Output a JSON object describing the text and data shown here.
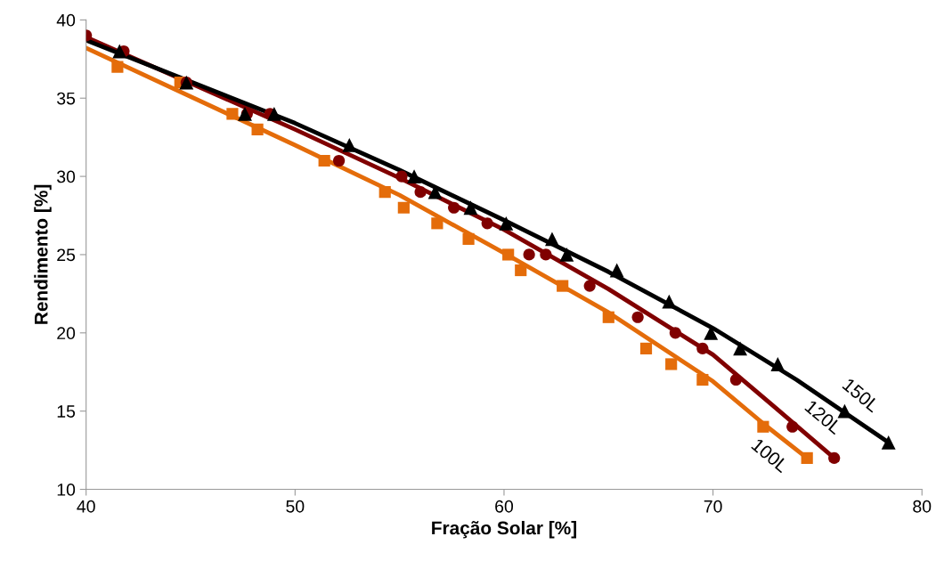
{
  "chart_data": {
    "type": "scatter",
    "xlabel": "Fração Solar [%]",
    "ylabel": "Rendimento [%]",
    "xlim": [
      40,
      80
    ],
    "xticks": [
      40,
      50,
      60,
      70,
      80
    ],
    "ylim": [
      10,
      40
    ],
    "yticks": [
      10,
      15,
      20,
      25,
      30,
      35,
      40
    ],
    "grid": false,
    "legend": false,
    "series": [
      {
        "type": "line",
        "name": "100L",
        "color": "#e46c0a",
        "x": [
          40,
          50,
          55,
          60,
          65,
          70,
          72.5,
          74.5
        ],
        "values": [
          38.2,
          32.0,
          28.8,
          25.1,
          21.3,
          16.9,
          14.1,
          12.0
        ]
      },
      {
        "type": "line",
        "name": "120L",
        "color": "#800000",
        "x": [
          40,
          50,
          55,
          60,
          65,
          70,
          73,
          75.8
        ],
        "values": [
          38.9,
          33.0,
          29.9,
          26.6,
          22.8,
          18.6,
          15.2,
          12.0
        ]
      },
      {
        "type": "line",
        "name": "150L",
        "color": "#000000",
        "x": [
          40,
          50,
          55,
          60,
          65,
          70,
          74,
          78.4
        ],
        "values": [
          38.7,
          33.4,
          30.4,
          27.2,
          23.9,
          20.3,
          17.0,
          13.0
        ]
      },
      {
        "marker": "square",
        "color": "#e46c0a",
        "x": [
          41.5,
          44.5,
          47.0,
          48.2,
          51.4,
          54.3,
          55.2,
          56.8,
          58.3,
          60.2,
          60.8,
          62.8,
          65.0,
          66.8,
          68.0,
          69.5,
          72.4,
          74.5
        ],
        "values": [
          37,
          36,
          34,
          33,
          31,
          29,
          28,
          27,
          26,
          25,
          24,
          23,
          21,
          19,
          18,
          17,
          14,
          12
        ]
      },
      {
        "marker": "circle",
        "color": "#800000",
        "x": [
          40.0,
          41.8,
          44.8,
          47.7,
          48.8,
          52.1,
          55.1,
          56.0,
          57.6,
          59.2,
          61.2,
          62.0,
          64.1,
          66.4,
          68.2,
          69.5,
          71.1,
          73.8,
          75.8
        ],
        "values": [
          39,
          38,
          36,
          34,
          34,
          31,
          30,
          29,
          28,
          27,
          25,
          25,
          23,
          21,
          20,
          19,
          17,
          14,
          12
        ]
      },
      {
        "marker": "triangle",
        "color": "#000000",
        "x": [
          41.6,
          44.8,
          47.6,
          49.0,
          52.6,
          55.7,
          56.7,
          58.4,
          60.1,
          62.3,
          63.0,
          65.4,
          67.9,
          69.9,
          71.3,
          73.1,
          76.3,
          78.4
        ],
        "values": [
          38,
          36,
          34,
          34,
          32,
          30,
          29,
          28,
          27,
          26,
          25,
          24,
          22,
          20,
          19,
          18,
          15,
          13
        ]
      }
    ]
  }
}
